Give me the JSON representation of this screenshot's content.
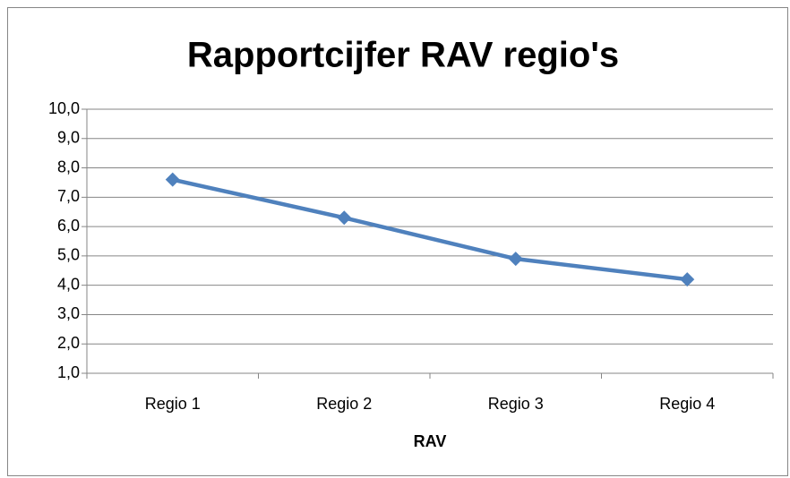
{
  "chart_data": {
    "type": "line",
    "title": "Rapportcijfer RAV regio's",
    "x_label": "RAV",
    "categories": [
      "Regio 1",
      "Regio 2",
      "Regio 3",
      "Regio 4"
    ],
    "series": [
      {
        "name": "Rapportcijfer",
        "color": "#4f81bd",
        "values": [
          7.6,
          6.3,
          4.9,
          4.2
        ]
      }
    ],
    "ylim": [
      1,
      10
    ],
    "yticks": [
      {
        "value": 1,
        "label": "1,0"
      },
      {
        "value": 2,
        "label": "2,0"
      },
      {
        "value": 3,
        "label": "3,0"
      },
      {
        "value": 4,
        "label": "4,0"
      },
      {
        "value": 5,
        "label": "5,0"
      },
      {
        "value": 6,
        "label": "6,0"
      },
      {
        "value": 7,
        "label": "7,0"
      },
      {
        "value": 8,
        "label": "8,0"
      },
      {
        "value": 9,
        "label": "9,0"
      },
      {
        "value": 10,
        "label": "10,0"
      }
    ],
    "grid": true
  }
}
